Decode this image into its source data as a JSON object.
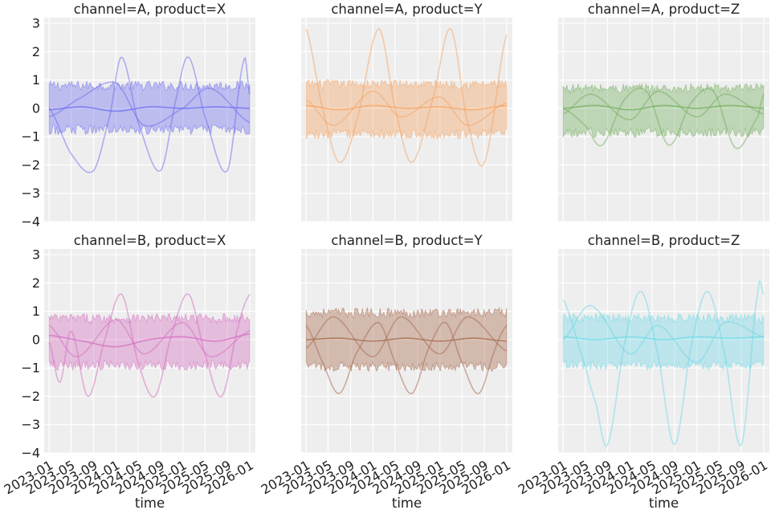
{
  "chart_data": {
    "type": "line",
    "layout": "2x3 facet grid, shared y axis per row",
    "xlabel": "time",
    "ylim": [
      -4,
      3.2
    ],
    "yticks": [
      3,
      2,
      1,
      0,
      -1,
      -2,
      -3,
      -4
    ],
    "xlim": [
      "2022-12-05",
      "2026-02-01"
    ],
    "xticks": [
      "2023-01",
      "2023-05",
      "2023-09",
      "2024-01",
      "2024-05",
      "2024-09",
      "2025-01",
      "2025-05",
      "2025-09",
      "2026-01"
    ],
    "grid": true,
    "background": "#eeeeee",
    "panels": [
      {
        "title": "channel=A, product=X",
        "color": "#6b6bf0",
        "band": {
          "lower": -0.75,
          "upper": 0.8
        },
        "mean_line": [
          [
            "2023-01",
            -0.05
          ],
          [
            "2023-07",
            0.05
          ],
          [
            "2024-01",
            -0.1
          ],
          [
            "2024-07",
            0.05
          ],
          [
            "2025-01",
            0.0
          ],
          [
            "2025-07",
            0.05
          ],
          [
            "2026-01",
            0.0
          ]
        ],
        "sample_lines": [
          {
            "key_points": [
              [
                "2023-01",
                0.0
              ],
              [
                "2023-05",
                -1.6
              ],
              [
                "2023-09",
                -2.2
              ],
              [
                "2023-12",
                -0.2
              ],
              [
                "2024-02",
                1.8
              ],
              [
                "2024-05",
                -0.5
              ],
              [
                "2024-09",
                -2.2
              ],
              [
                "2024-12",
                0.5
              ],
              [
                "2025-02",
                1.8
              ],
              [
                "2025-05",
                -0.3
              ],
              [
                "2025-09",
                -2.2
              ],
              [
                "2025-12",
                1.7
              ],
              [
                "2026-01",
                0.5
              ]
            ]
          },
          {
            "key_points": [
              [
                "2023-01",
                -0.3
              ],
              [
                "2023-06",
                0.3
              ],
              [
                "2024-01",
                0.9
              ],
              [
                "2024-06",
                -0.6
              ],
              [
                "2025-01",
                0.0
              ],
              [
                "2025-06",
                0.7
              ],
              [
                "2026-01",
                -0.5
              ]
            ]
          }
        ]
      },
      {
        "title": "channel=A, product=Y",
        "color": "#f5a260",
        "band": {
          "lower": -0.9,
          "upper": 0.85
        },
        "mean_line": [
          [
            "2023-01",
            0.1
          ],
          [
            "2023-07",
            -0.05
          ],
          [
            "2024-01",
            0.1
          ],
          [
            "2024-07",
            0.0
          ],
          [
            "2025-01",
            0.05
          ],
          [
            "2025-07",
            -0.05
          ],
          [
            "2026-01",
            0.1
          ]
        ],
        "sample_lines": [
          {
            "key_points": [
              [
                "2023-01",
                2.8
              ],
              [
                "2023-04",
                0.0
              ],
              [
                "2023-07",
                -1.9
              ],
              [
                "2023-10",
                -0.5
              ],
              [
                "2024-02",
                2.8
              ],
              [
                "2024-05",
                0.0
              ],
              [
                "2024-08",
                -1.9
              ],
              [
                "2024-12",
                0.5
              ],
              [
                "2025-03",
                2.8
              ],
              [
                "2025-06",
                -0.5
              ],
              [
                "2025-09",
                -1.9
              ],
              [
                "2026-01",
                2.6
              ]
            ]
          },
          {
            "key_points": [
              [
                "2023-01",
                0.3
              ],
              [
                "2023-06",
                -0.6
              ],
              [
                "2024-01",
                0.6
              ],
              [
                "2024-06",
                -0.3
              ],
              [
                "2025-01",
                0.4
              ],
              [
                "2025-06",
                -0.6
              ],
              [
                "2026-01",
                0.2
              ]
            ]
          }
        ]
      },
      {
        "title": "channel=A, product=Z",
        "color": "#72ad5c",
        "band": {
          "lower": -0.85,
          "upper": 0.7
        },
        "mean_line": [
          [
            "2023-01",
            0.0
          ],
          [
            "2023-07",
            0.1
          ],
          [
            "2024-01",
            -0.05
          ],
          [
            "2024-07",
            0.1
          ],
          [
            "2025-01",
            0.0
          ],
          [
            "2025-07",
            0.1
          ],
          [
            "2026-01",
            0.0
          ]
        ],
        "sample_lines": [
          {
            "key_points": [
              [
                "2023-01",
                0.0
              ],
              [
                "2023-05",
                -0.6
              ],
              [
                "2023-08",
                -1.3
              ],
              [
                "2023-12",
                0.3
              ],
              [
                "2024-04",
                0.6
              ],
              [
                "2024-08",
                -1.3
              ],
              [
                "2024-12",
                0.2
              ],
              [
                "2025-04",
                0.6
              ],
              [
                "2025-08",
                -1.4
              ],
              [
                "2025-12",
                -0.3
              ],
              [
                "2026-01",
                0.5
              ]
            ]
          },
          {
            "key_points": [
              [
                "2023-01",
                -0.2
              ],
              [
                "2023-06",
                0.5
              ],
              [
                "2024-01",
                -0.4
              ],
              [
                "2024-06",
                0.6
              ],
              [
                "2025-01",
                -0.3
              ],
              [
                "2025-06",
                0.5
              ],
              [
                "2026-01",
                -0.2
              ]
            ]
          }
        ]
      },
      {
        "title": "channel=B, product=X",
        "color": "#d46cc0",
        "band": {
          "lower": -0.9,
          "upper": 0.75
        },
        "mean_line": [
          [
            "2023-01",
            0.15
          ],
          [
            "2023-07",
            -0.05
          ],
          [
            "2024-01",
            -0.25
          ],
          [
            "2024-07",
            0.0
          ],
          [
            "2025-01",
            0.1
          ],
          [
            "2025-07",
            -0.05
          ],
          [
            "2026-01",
            0.2
          ]
        ],
        "sample_lines": [
          {
            "key_points": [
              [
                "2023-01",
                -0.1
              ],
              [
                "2023-03",
                -1.5
              ],
              [
                "2023-05",
                0.3
              ],
              [
                "2023-08",
                -2.0
              ],
              [
                "2023-11",
                0.0
              ],
              [
                "2024-02",
                1.6
              ],
              [
                "2024-05",
                -0.8
              ],
              [
                "2024-08",
                -2.0
              ],
              [
                "2024-11",
                0.2
              ],
              [
                "2025-02",
                1.6
              ],
              [
                "2025-05",
                -0.5
              ],
              [
                "2025-08",
                -2.0
              ],
              [
                "2025-11",
                0.5
              ],
              [
                "2026-01",
                1.6
              ]
            ]
          },
          {
            "key_points": [
              [
                "2023-01",
                0.5
              ],
              [
                "2023-06",
                -0.6
              ],
              [
                "2024-01",
                0.7
              ],
              [
                "2024-06",
                -0.5
              ],
              [
                "2025-01",
                0.6
              ],
              [
                "2025-06",
                -0.6
              ],
              [
                "2026-01",
                0.3
              ]
            ]
          }
        ]
      },
      {
        "title": "channel=B, product=Y",
        "color": "#a5674a",
        "band": {
          "lower": -0.95,
          "upper": 0.95
        },
        "mean_line": [
          [
            "2023-01",
            0.0
          ],
          [
            "2023-07",
            0.05
          ],
          [
            "2024-01",
            -0.05
          ],
          [
            "2024-07",
            0.05
          ],
          [
            "2025-01",
            -0.05
          ],
          [
            "2025-07",
            0.05
          ],
          [
            "2026-01",
            -0.05
          ]
        ],
        "sample_lines": [
          {
            "key_points": [
              [
                "2023-01",
                0.5
              ],
              [
                "2023-04",
                -0.8
              ],
              [
                "2023-07",
                -1.9
              ],
              [
                "2023-10",
                -0.5
              ],
              [
                "2024-02",
                0.6
              ],
              [
                "2024-05",
                -0.8
              ],
              [
                "2024-08",
                -1.9
              ],
              [
                "2024-11",
                -0.3
              ],
              [
                "2025-02",
                0.6
              ],
              [
                "2025-05",
                -0.8
              ],
              [
                "2025-08",
                -1.9
              ],
              [
                "2025-11",
                -0.3
              ],
              [
                "2026-01",
                0.5
              ]
            ]
          },
          {
            "key_points": [
              [
                "2023-01",
                -0.3
              ],
              [
                "2023-06",
                0.8
              ],
              [
                "2024-01",
                -0.6
              ],
              [
                "2024-06",
                0.8
              ],
              [
                "2025-01",
                -0.5
              ],
              [
                "2025-06",
                0.8
              ],
              [
                "2026-01",
                -0.4
              ]
            ]
          }
        ]
      },
      {
        "title": "channel=B, product=Z",
        "color": "#6ed8e8",
        "band": {
          "lower": -0.9,
          "upper": 0.75
        },
        "mean_line": [
          [
            "2023-01",
            0.1
          ],
          [
            "2023-07",
            0.0
          ],
          [
            "2024-01",
            0.1
          ],
          [
            "2024-07",
            0.0
          ],
          [
            "2025-01",
            0.1
          ],
          [
            "2025-07",
            0.05
          ],
          [
            "2026-01",
            0.1
          ]
        ],
        "sample_lines": [
          {
            "key_points": [
              [
                "2023-01",
                1.4
              ],
              [
                "2023-04",
                -0.3
              ],
              [
                "2023-07",
                -2.3
              ],
              [
                "2023-09",
                -3.7
              ],
              [
                "2023-12",
                -0.2
              ],
              [
                "2024-03",
                1.7
              ],
              [
                "2024-06",
                -0.5
              ],
              [
                "2024-09",
                -3.7
              ],
              [
                "2024-12",
                -0.2
              ],
              [
                "2025-03",
                1.7
              ],
              [
                "2025-06",
                -0.5
              ],
              [
                "2025-09",
                -3.7
              ],
              [
                "2025-12",
                1.7
              ],
              [
                "2026-01",
                1.6
              ]
            ]
          },
          {
            "key_points": [
              [
                "2023-01",
                0.0
              ],
              [
                "2023-06",
                1.2
              ],
              [
                "2024-01",
                -0.5
              ],
              [
                "2024-06",
                0.5
              ],
              [
                "2025-01",
                -0.8
              ],
              [
                "2025-06",
                0.6
              ],
              [
                "2026-01",
                0.1
              ]
            ]
          }
        ]
      }
    ]
  }
}
